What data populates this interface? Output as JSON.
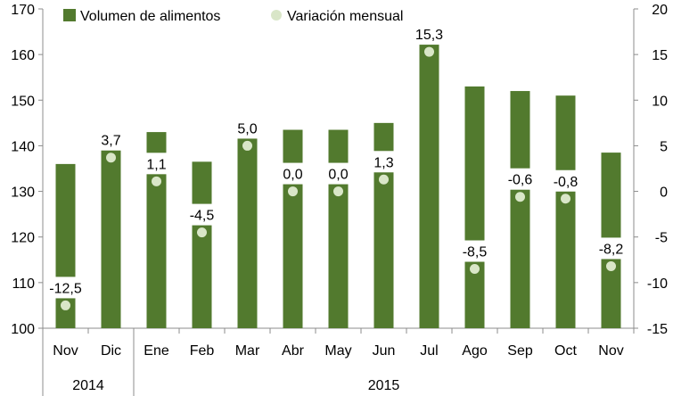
{
  "chart_data": {
    "type": "bar",
    "title": "",
    "categories": [
      "Nov",
      "Dic",
      "Ene",
      "Feb",
      "Mar",
      "Abr",
      "May",
      "Jun",
      "Jul",
      "Ago",
      "Sep",
      "Oct",
      "Nov"
    ],
    "groups": [
      {
        "label": "2014",
        "span": 2
      },
      {
        "label": "2015",
        "span": 11
      }
    ],
    "series": [
      {
        "name": "Volumen de alimentos",
        "axis": "left",
        "color": "#527a2e",
        "values": [
          136,
          139.5,
          143,
          136.5,
          142.5,
          143.5,
          143.5,
          145,
          163,
          153,
          152,
          151,
          138.5
        ],
        "notes": "Vertical bars from axis floor to value; bar is interrupted where the data label sits"
      },
      {
        "name": "Variación mensual",
        "axis": "right",
        "color": "#d9e6c8",
        "values": [
          -12.5,
          3.7,
          1.1,
          -4.5,
          5.0,
          0.0,
          0.0,
          1.3,
          15.3,
          -8.5,
          -0.6,
          -0.8,
          -8.2
        ],
        "labels": [
          "-12,5",
          "3,7",
          "1,1",
          "-4,5",
          "5,0",
          "0,0",
          "0,0",
          "1,3",
          "15,3",
          "-8,5",
          "-0,6",
          "-0,8",
          "-8,2"
        ]
      }
    ],
    "y_left": {
      "min": 100,
      "max": 170,
      "ticks": [
        100,
        110,
        120,
        130,
        140,
        150,
        160,
        170
      ]
    },
    "y_right": {
      "min": -15,
      "max": 20,
      "ticks": [
        -15,
        -10,
        -5,
        0,
        5,
        10,
        15,
        20
      ]
    },
    "legend_position": "top-left",
    "grid": false
  }
}
